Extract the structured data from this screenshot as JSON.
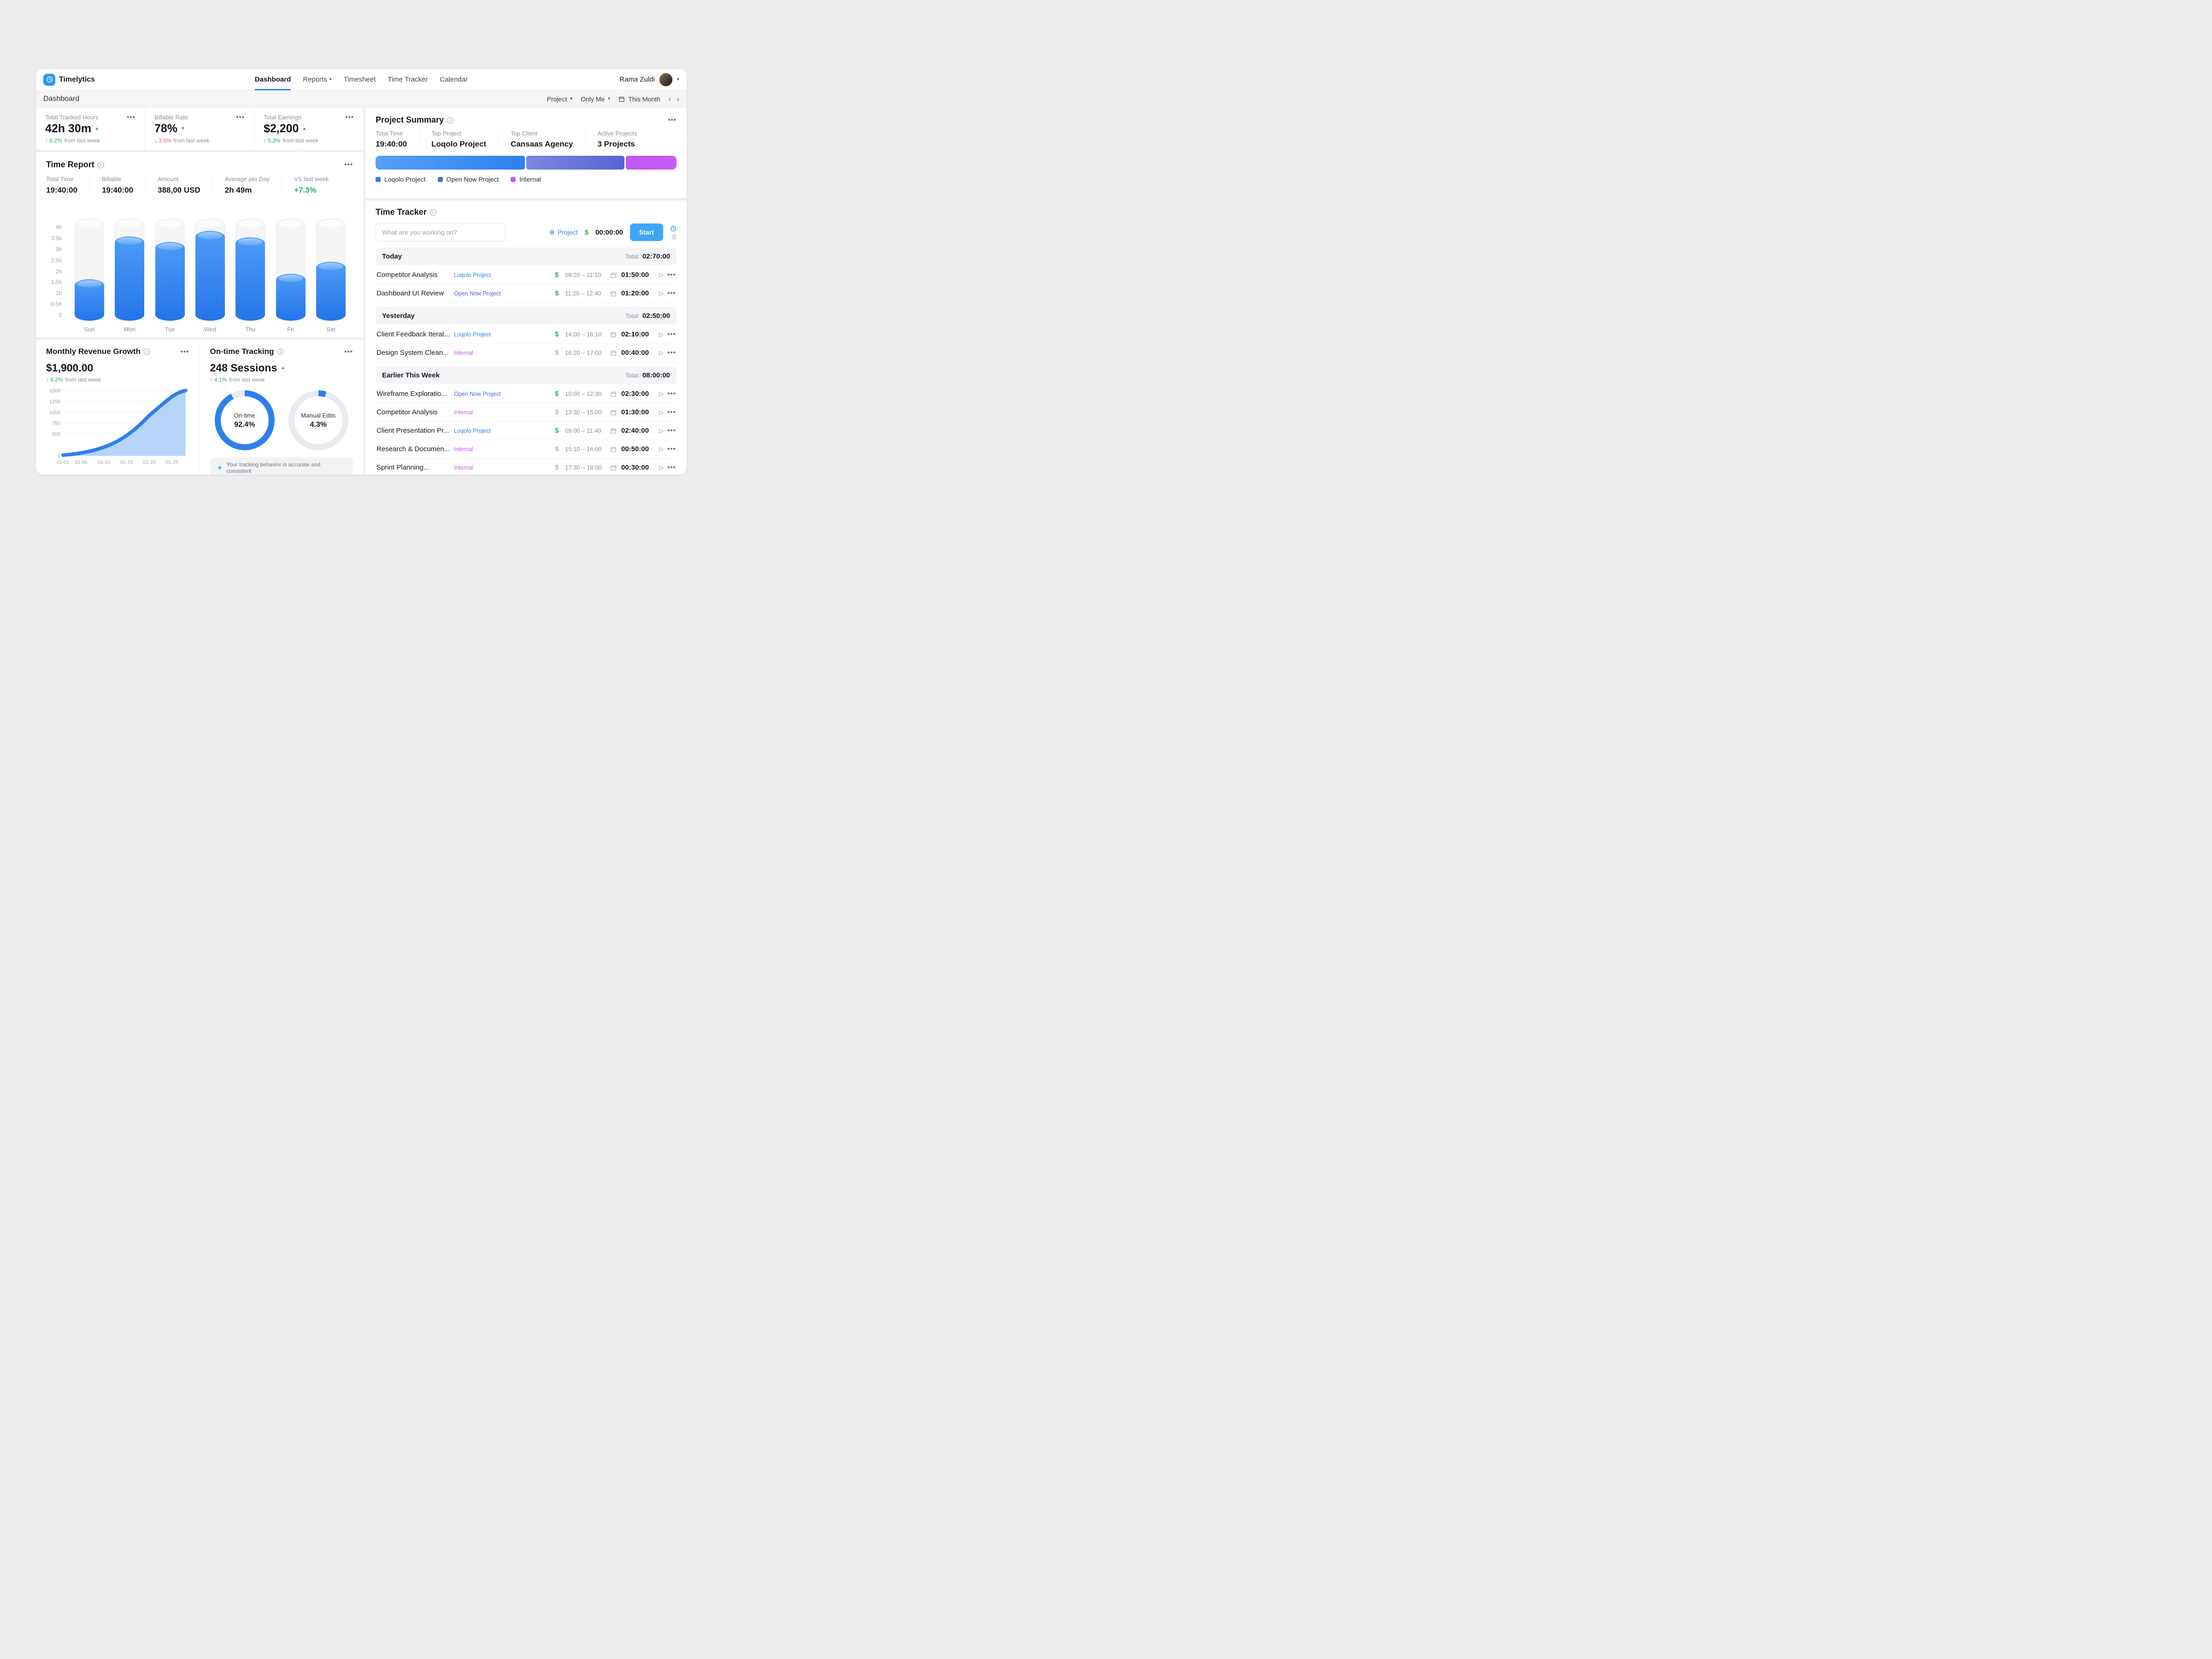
{
  "app": {
    "name": "Timelytics"
  },
  "header": {
    "nav": [
      {
        "label": "Dashboard",
        "active": true,
        "caret": false
      },
      {
        "label": "Reports",
        "active": false,
        "caret": true
      },
      {
        "label": "Timesheet",
        "active": false,
        "caret": false
      },
      {
        "label": "Time Tracker",
        "active": false,
        "caret": false
      },
      {
        "label": "Calendar",
        "active": false,
        "caret": false
      }
    ],
    "user": {
      "name": "Rama Zuldi"
    }
  },
  "subheader": {
    "title": "Dashboard",
    "project_filter": "Project",
    "scope_filter": "Only Me",
    "period": "This Month"
  },
  "stats": [
    {
      "label": "Total Tracked Hours",
      "value": "42h 30m",
      "trend": "up",
      "delta": "6.2%",
      "note": "from last week"
    },
    {
      "label": "Billable Rate",
      "value": "78%",
      "trend": "down",
      "delta": "3.5%",
      "note": "from last week"
    },
    {
      "label": "Total Earnings",
      "value": "$2,200",
      "trend": "up",
      "delta": "5.3%",
      "note": "from last week"
    }
  ],
  "time_report": {
    "title": "Time Report",
    "metrics": [
      {
        "label": "Total Time",
        "value": "19:40:00"
      },
      {
        "label": "Billable",
        "value": "19:40:00"
      },
      {
        "label": "Amount",
        "value": "388,00 USD"
      },
      {
        "label": "Average per Day",
        "value": "2h 49m"
      },
      {
        "label": "VS last week",
        "value": "+7.3%",
        "positive": true
      }
    ]
  },
  "revenue": {
    "title": "Monthly Revenue Growth",
    "value": "$1,900.00",
    "trend": "up",
    "delta": "6.2%",
    "note": "from last week"
  },
  "ontime": {
    "title": "On-time Tracking",
    "value": "248 Sessions",
    "trend": "up",
    "delta": "4.1%",
    "note": "from last week",
    "donuts": [
      {
        "label": "On-time",
        "value": "92.4%",
        "pct": 92.4
      },
      {
        "label": "Manual Edits",
        "value": "4.3%",
        "pct": 4.3
      }
    ],
    "footnote": "Your tracking behavior is accurate and consistent"
  },
  "project_summary": {
    "title": "Project Summary",
    "metrics": [
      {
        "label": "Total Time",
        "value": "19:40:00"
      },
      {
        "label": "Top Project",
        "value": "Loqolo Project"
      },
      {
        "label": "Top Client",
        "value": "Cansaas Agency"
      },
      {
        "label": "Active Projects",
        "value": "3 Projects"
      }
    ],
    "segments": [
      {
        "name": "Loqolo Project",
        "pct": 50,
        "color_from": "#55A0F8",
        "color_to": "#2F80ED",
        "legend_color": "#2F80ED"
      },
      {
        "name": "Open Now Project",
        "pct": 33,
        "color_from": "#7B87DF",
        "color_to": "#5865D1",
        "legend_color": "#5966D2"
      },
      {
        "name": "Internal",
        "pct": 17,
        "color_from": "#BB5AF1",
        "color_to": "#C95BF4",
        "legend_color": "#C05BF2"
      }
    ]
  },
  "tracker": {
    "title": "Time Tracker",
    "input_placeholder": "What are you working on?",
    "add_project_label": "Project",
    "timer": "00:00:00",
    "start_label": "Start",
    "total_label": "Total:",
    "project_colors": {
      "Loqolo Project": "#2F80ED",
      "Open Now Project": "#4667D6",
      "Internal": "#C05BF2"
    },
    "groups": [
      {
        "label": "Today",
        "total": "02:70:00",
        "entries": [
          {
            "name": "Competitor Analysis",
            "project": "Loqolo Project",
            "billable": true,
            "range": "09:20 – 11:10",
            "duration": "01:50:00"
          },
          {
            "name": "Dashboard UI Review",
            "project": "Open Now Project",
            "billable": true,
            "range": "11:20 – 12:40",
            "duration": "01:20:00"
          }
        ]
      },
      {
        "label": "Yesterday",
        "total": "02:50:00",
        "entries": [
          {
            "name": "Client Feedback Iterat...",
            "project": "Loqolo Project",
            "billable": true,
            "range": "14:00 – 16:10",
            "duration": "02:10:00"
          },
          {
            "name": "Design System Clean...",
            "project": "Internal",
            "billable": false,
            "range": "16:20 – 17:00",
            "duration": "00:40:00"
          }
        ]
      },
      {
        "label": "Earlier This Week",
        "total": "08:00:00",
        "entries": [
          {
            "name": "Wireframe Exploratio...",
            "project": "Open Now Project",
            "billable": true,
            "range": "10:00 – 12:30",
            "duration": "02:30:00"
          },
          {
            "name": "Competitor Analysis",
            "project": "Internal",
            "billable": false,
            "range": "13:30 – 15:00",
            "duration": "01:30:00"
          },
          {
            "name": "Client Presentation Pr...",
            "project": "Loqolo Project",
            "billable": true,
            "range": "09:00 – 11:40",
            "duration": "02:40:00"
          },
          {
            "name": "Research & Documen...",
            "project": "Internal",
            "billable": false,
            "range": "15:10 – 16:00",
            "duration": "00:50:00"
          },
          {
            "name": "Sprint Planning...",
            "project": "Internal",
            "billable": false,
            "range": "17:30 – 18:00",
            "duration": "00:30:00"
          }
        ]
      }
    ]
  },
  "chart_data": [
    {
      "id": "weekly_hours",
      "type": "bar",
      "title": "Time Report — hours tracked per day",
      "categories": [
        "Sun",
        "Mon",
        "Tue",
        "Wed",
        "Thu",
        "Fri",
        "Sat"
      ],
      "values": [
        1.6,
        3.55,
        3.3,
        3.8,
        3.5,
        1.85,
        2.4
      ],
      "unit": "hours",
      "ylim": [
        0,
        4.3
      ],
      "yticks": [
        {
          "label": "4h",
          "v": 4
        },
        {
          "label": "3.5h",
          "v": 3.5
        },
        {
          "label": "3h",
          "v": 3
        },
        {
          "label": "2.5h",
          "v": 2.5
        },
        {
          "label": "2h",
          "v": 2
        },
        {
          "label": "1.5h",
          "v": 1.5
        },
        {
          "label": "1h",
          "v": 1
        },
        {
          "label": "0.5h",
          "v": 0.5
        },
        {
          "label": "0",
          "v": 0
        }
      ],
      "bar_style": "cylinder",
      "bar_color": "#2F80ED"
    },
    {
      "id": "revenue_growth",
      "type": "area",
      "title": "Monthly Revenue Growth",
      "x": [
        "01-01",
        "01-05",
        "01-10",
        "01-15",
        "01-20",
        "01-25"
      ],
      "xtick_indices": [
        0,
        4,
        9,
        14,
        19,
        24
      ],
      "values": [
        15,
        25,
        36,
        50,
        66,
        85,
        108,
        134,
        164,
        198,
        238,
        284,
        338,
        400,
        468,
        544,
        628,
        720,
        820,
        928,
        1016,
        1104,
        1192,
        1280,
        1360,
        1424,
        1472,
        1500
      ],
      "ylim": [
        0,
        1500
      ],
      "yticks": [
        0,
        500,
        750,
        1000,
        1250,
        1500
      ],
      "line_color": "#2F80ED",
      "fill_color": "#B7D4FB",
      "grid": true,
      "legend": "none"
    },
    {
      "id": "ontime_donuts",
      "type": "pie",
      "title": "On-time Tracking",
      "series": [
        {
          "name": "On-time",
          "value": 92.4
        },
        {
          "name": "Manual Edits",
          "value": 4.3
        }
      ],
      "ring_color": "#2F80ED",
      "track_color": "#E9EBF0"
    },
    {
      "id": "project_share",
      "type": "bar",
      "title": "Project Summary share of time",
      "categories": [
        "Loqolo Project",
        "Open Now Project",
        "Internal"
      ],
      "values": [
        50,
        33,
        17
      ],
      "unit": "percent"
    }
  ]
}
